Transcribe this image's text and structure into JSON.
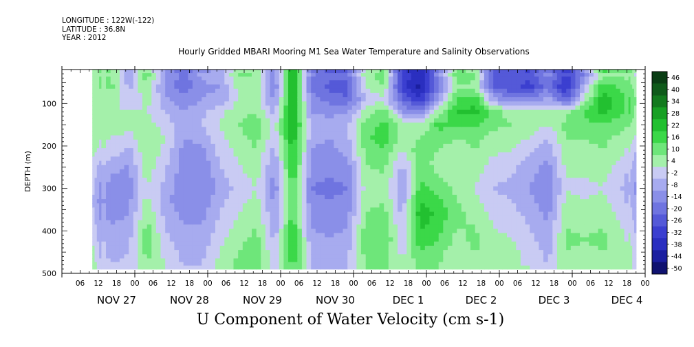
{
  "header": {
    "longitude": "LONGITUDE : 122W(-122)",
    "latitude": "LATITUDE : 36.8N",
    "year": "YEAR : 2012"
  },
  "chart_data": {
    "type": "heatmap",
    "title": "Hourly Gridded MBARI Mooring M1 Sea Water Temperature and Salinity Observations",
    "variable_label": "U Component of Water Velocity (cm s-1)",
    "ylabel": "DEPTH (m)",
    "xlabel": "",
    "ylim": [
      500,
      20
    ],
    "y_ticks": [
      100,
      200,
      300,
      400,
      500
    ],
    "hour_ticks": [
      "06",
      "12",
      "18",
      "00",
      "06",
      "12",
      "18",
      "00",
      "06",
      "12",
      "18",
      "00",
      "06",
      "12",
      "18",
      "00",
      "06",
      "12",
      "18",
      "00",
      "06",
      "12",
      "18",
      "00",
      "06",
      "12",
      "18",
      "00",
      "06",
      "12",
      "18",
      "00"
    ],
    "day_labels": [
      "NOV 27",
      "NOV 28",
      "NOV 29",
      "NOV 30",
      "DEC  1",
      "DEC  2",
      "DEC  3",
      "DEC  4"
    ],
    "colorbar_labels": [
      "46",
      "40",
      "34",
      "28",
      "22",
      "16",
      "10",
      "4",
      "-2",
      "-8",
      "-14",
      "-20",
      "-26",
      "-32",
      "-38",
      "-44",
      "-50"
    ],
    "colorbar_colors": [
      "#0a3d14",
      "#0f5a1a",
      "#137a1e",
      "#18a024",
      "#22c030",
      "#3bd848",
      "#6ee67a",
      "#a4f0aa",
      "#c9cbf3",
      "#a7abef",
      "#8a8fe8",
      "#6f74e0",
      "#5459d8",
      "#3b3fd0",
      "#2a2fc0",
      "#1b1fa0",
      "#101270"
    ],
    "data_extent": {
      "start_hour": 10,
      "end_hour": 189,
      "depth_min": 20,
      "depth_max": 490
    },
    "field": {
      "depths": [
        30,
        60,
        90,
        120,
        150,
        180,
        210,
        240,
        270,
        300,
        330,
        360,
        390,
        420,
        450,
        480
      ],
      "time_hours": [
        10,
        16,
        22,
        28,
        34,
        40,
        46,
        52,
        58,
        64,
        70,
        76,
        82,
        88,
        94,
        100,
        106,
        112,
        118,
        124,
        130,
        136,
        142,
        148,
        154,
        160,
        166,
        172,
        178,
        184,
        189
      ],
      "u": [
        [
          8,
          10,
          -6,
          14,
          -8,
          -16,
          -6,
          -4,
          12,
          10,
          -12,
          30,
          -12,
          -18,
          -16,
          8,
          14,
          -26,
          -36,
          -10,
          14,
          12,
          -20,
          -22,
          -24,
          -10,
          -26,
          -14,
          6,
          10,
          2
        ],
        [
          4,
          12,
          -4,
          10,
          -10,
          -18,
          -10,
          -8,
          6,
          8,
          -14,
          32,
          -16,
          -22,
          -22,
          4,
          10,
          -30,
          -40,
          -14,
          10,
          8,
          -22,
          -24,
          -28,
          -16,
          -34,
          -4,
          20,
          14,
          6
        ],
        [
          6,
          8,
          -2,
          6,
          -6,
          -12,
          -8,
          -6,
          4,
          6,
          -10,
          28,
          -12,
          -16,
          -20,
          -2,
          2,
          -20,
          -30,
          -6,
          16,
          20,
          -6,
          -14,
          -12,
          -6,
          -20,
          4,
          26,
          18,
          10
        ],
        [
          8,
          6,
          4,
          4,
          -2,
          -8,
          -4,
          2,
          8,
          10,
          -4,
          30,
          -8,
          -10,
          -8,
          6,
          14,
          -8,
          -14,
          8,
          22,
          24,
          14,
          6,
          4,
          6,
          8,
          16,
          24,
          18,
          8
        ],
        [
          10,
          8,
          6,
          6,
          2,
          -6,
          -2,
          4,
          10,
          14,
          2,
          28,
          -4,
          -6,
          -2,
          12,
          18,
          8,
          4,
          18,
          16,
          18,
          12,
          10,
          8,
          4,
          12,
          14,
          16,
          12,
          6
        ],
        [
          8,
          4,
          2,
          8,
          4,
          -8,
          -6,
          2,
          8,
          12,
          0,
          26,
          -6,
          -8,
          -4,
          14,
          20,
          6,
          10,
          14,
          10,
          12,
          8,
          6,
          4,
          -2,
          10,
          10,
          12,
          8,
          2
        ],
        [
          6,
          2,
          -4,
          10,
          2,
          -10,
          -10,
          0,
          6,
          10,
          -4,
          24,
          -8,
          -10,
          -6,
          12,
          16,
          4,
          14,
          10,
          6,
          10,
          6,
          4,
          0,
          -6,
          8,
          8,
          10,
          6,
          -2
        ],
        [
          4,
          -4,
          -8,
          8,
          0,
          -12,
          -12,
          -2,
          4,
          8,
          -8,
          22,
          -10,
          -12,
          -10,
          10,
          12,
          -2,
          12,
          8,
          4,
          8,
          2,
          0,
          -4,
          -10,
          6,
          6,
          8,
          2,
          -6
        ],
        [
          2,
          -8,
          -10,
          6,
          -2,
          -12,
          -14,
          -4,
          2,
          6,
          -10,
          20,
          -12,
          -14,
          -12,
          8,
          10,
          -6,
          14,
          10,
          6,
          6,
          0,
          -2,
          -6,
          -12,
          4,
          4,
          6,
          0,
          -8
        ],
        [
          0,
          -10,
          -12,
          4,
          -4,
          -14,
          -14,
          -6,
          0,
          4,
          -12,
          18,
          -14,
          -16,
          -14,
          6,
          8,
          -8,
          18,
          14,
          8,
          4,
          -2,
          -4,
          -8,
          -14,
          4,
          2,
          4,
          -2,
          -10
        ],
        [
          -2,
          -12,
          -10,
          6,
          -6,
          -12,
          -12,
          -4,
          2,
          6,
          -10,
          16,
          -12,
          -14,
          -12,
          8,
          10,
          -6,
          22,
          18,
          10,
          6,
          0,
          -2,
          -6,
          -12,
          6,
          4,
          6,
          0,
          -8
        ],
        [
          0,
          -10,
          -8,
          10,
          -4,
          -10,
          -10,
          -2,
          4,
          8,
          -8,
          18,
          -10,
          -12,
          -10,
          10,
          12,
          -4,
          26,
          20,
          12,
          8,
          2,
          0,
          -4,
          -10,
          8,
          6,
          8,
          2,
          -6
        ],
        [
          2,
          -8,
          -6,
          12,
          -2,
          -8,
          -8,
          0,
          6,
          10,
          -6,
          20,
          -8,
          -10,
          -8,
          12,
          14,
          -2,
          24,
          18,
          10,
          10,
          4,
          2,
          -2,
          -8,
          10,
          8,
          10,
          4,
          -4
        ],
        [
          4,
          -6,
          -4,
          14,
          0,
          -6,
          -6,
          2,
          8,
          12,
          -4,
          22,
          -6,
          -8,
          -6,
          14,
          16,
          0,
          20,
          16,
          8,
          12,
          6,
          4,
          0,
          -6,
          12,
          10,
          12,
          6,
          -2
        ],
        [
          6,
          -4,
          -2,
          12,
          2,
          -4,
          -4,
          4,
          10,
          14,
          -2,
          20,
          -4,
          -6,
          -4,
          12,
          14,
          2,
          16,
          12,
          6,
          10,
          8,
          6,
          2,
          -4,
          10,
          8,
          10,
          8,
          0
        ],
        [
          8,
          -2,
          0,
          10,
          4,
          -2,
          -2,
          6,
          12,
          12,
          0,
          18,
          -2,
          -4,
          -2,
          10,
          12,
          4,
          12,
          10,
          4,
          8,
          6,
          4,
          4,
          -2,
          8,
          6,
          8,
          6,
          2
        ]
      ]
    }
  }
}
